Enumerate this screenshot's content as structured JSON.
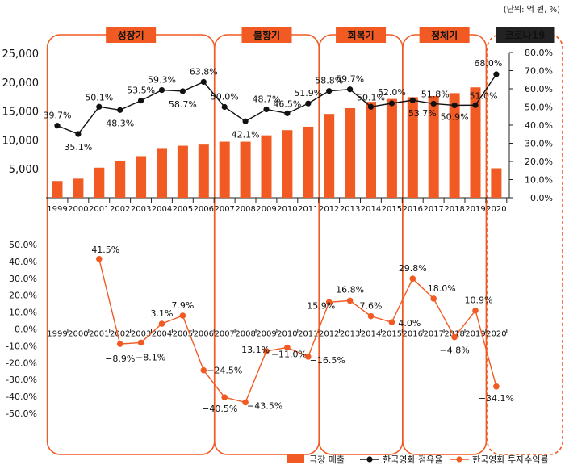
{
  "unit_note": "(단위: 억 원, %)",
  "chart_data": {
    "type": "combo",
    "years": [
      "1999",
      "2000",
      "2001",
      "2002",
      "2003",
      "2004",
      "2005",
      "2006",
      "2007",
      "2008",
      "2009",
      "2010",
      "2011",
      "2012",
      "2013",
      "2014",
      "2015",
      "2016",
      "2017",
      "2018",
      "2019",
      "2020"
    ],
    "periods": [
      {
        "label": "성장기",
        "from": "1999",
        "to": "2006",
        "style": "solid"
      },
      {
        "label": "불황기",
        "from": "2007",
        "to": "2011",
        "style": "solid"
      },
      {
        "label": "회복기",
        "from": "2012",
        "to": "2015",
        "style": "solid"
      },
      {
        "label": "정체기",
        "from": "2016",
        "to": "2019",
        "style": "solid"
      },
      {
        "label": "코로나19",
        "from": "2020",
        "to": "2020",
        "style": "dashed"
      }
    ],
    "top_panel": {
      "left_axis": {
        "ylim": [
          0,
          25000
        ],
        "ticks": [
          "5,000",
          "10,000",
          "15,000",
          "20,000",
          "25,000"
        ],
        "tick_values": [
          5000,
          10000,
          15000,
          20000,
          25000
        ]
      },
      "right_axis": {
        "ylim": [
          0,
          80
        ],
        "ticks": [
          "0.0%",
          "10.0%",
          "20.0%",
          "30.0%",
          "40.0%",
          "50.0%",
          "60.0%",
          "70.0%",
          "80.0%"
        ],
        "tick_values": [
          0,
          10,
          20,
          30,
          40,
          50,
          60,
          70,
          80
        ]
      },
      "series": [
        {
          "name": "극장 매출",
          "kind": "bar",
          "axis": "left",
          "color": "#f15a22",
          "values": [
            2900,
            3300,
            5200,
            6300,
            7200,
            8600,
            9000,
            9200,
            9700,
            9700,
            10800,
            11700,
            12300,
            14500,
            15500,
            16600,
            17100,
            17400,
            17600,
            18100,
            19100,
            5100
          ]
        },
        {
          "name": "한국영화 점유율",
          "kind": "line",
          "axis": "right",
          "color": "#111111",
          "values": [
            39.7,
            35.1,
            50.1,
            48.3,
            53.5,
            59.3,
            58.7,
            63.8,
            50.0,
            42.1,
            48.7,
            46.5,
            51.9,
            58.8,
            59.7,
            50.1,
            52.0,
            53.7,
            51.8,
            50.9,
            51.0,
            68.0
          ],
          "labels": [
            "39.7%",
            "35.1%",
            "50.1%",
            "48.3%",
            "53.5%",
            "59.3%",
            "58.7%",
            "63.8%",
            "50.0%",
            "42.1%",
            "48.7%",
            "46.5%",
            "51.9%",
            "58.8%",
            "59.7%",
            "50.1%",
            "52.0%",
            "53.7%",
            "51.8%",
            "50.9%",
            "51.0%",
            "68.0%"
          ]
        }
      ]
    },
    "bottom_panel": {
      "axis": {
        "ylim": [
          -50,
          50
        ],
        "ticks": [
          "50.0%",
          "40.0%",
          "30.0%",
          "20.0%",
          "10.0%",
          "0.0%",
          "-10.0%",
          "-20.0%",
          "-30.0%",
          "-40.0%",
          "-50.0%"
        ],
        "tick_values": [
          50,
          40,
          30,
          20,
          10,
          0,
          -10,
          -20,
          -30,
          -40,
          -50
        ]
      },
      "series": [
        {
          "name": "한국영화 투자수익률",
          "kind": "line",
          "color": "#f15a22",
          "from": "2001",
          "values": [
            41.5,
            -8.9,
            -8.1,
            3.1,
            7.9,
            -24.5,
            -40.5,
            -43.5,
            -13.1,
            -11.0,
            -16.5,
            15.9,
            16.8,
            7.6,
            4.0,
            29.8,
            18.0,
            -4.8,
            10.9,
            -34.1
          ],
          "labels": [
            "41.5%",
            "−8.9%",
            "−8.1%",
            "3.1%",
            "7.9%",
            "−24.5%",
            "−40.5%",
            "−43.5%",
            "−13.1%",
            "−11.0%",
            "−16.5%",
            "15.9%",
            "16.8%",
            "7.6%",
            "4.0%",
            "29.8%",
            "18.0%",
            "−4.8%",
            "10.9%",
            "−34.1%"
          ]
        }
      ]
    },
    "legend": {
      "placement": "bottom-right",
      "items": [
        {
          "label": "극장 매출",
          "marker": "bar",
          "color": "#f15a22"
        },
        {
          "label": "한국영화 점유율",
          "marker": "line-dot",
          "color": "#111111"
        },
        {
          "label": "한국영화 투자수익률",
          "marker": "line-dot",
          "color": "#f15a22"
        }
      ]
    }
  }
}
